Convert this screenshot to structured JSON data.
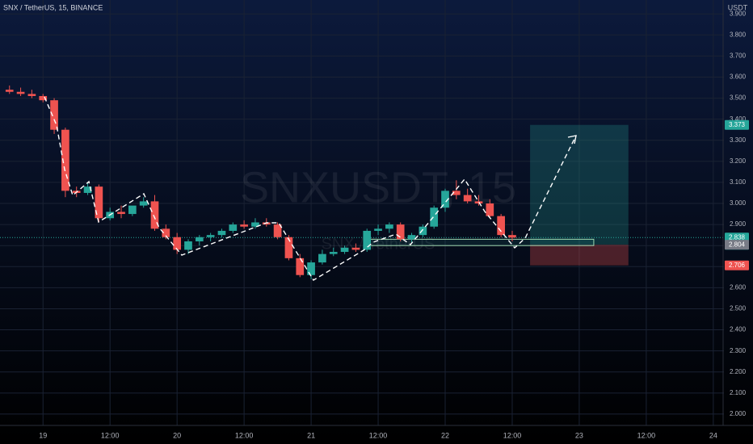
{
  "chart_data": {
    "type": "candlestick",
    "title": "SNX / TetherUS, 15, BINANCE",
    "currency": "USDT",
    "watermark": "SNXUSDT, 15",
    "watermark_sub": "SNX / TetherUS",
    "up_color": "#26a69a",
    "down_color": "#ef5350",
    "x": [
      -6,
      -4,
      -2,
      0,
      2,
      4,
      6,
      8,
      10,
      12,
      14,
      16,
      18,
      20,
      22,
      24,
      26,
      28,
      30,
      32,
      34,
      36,
      38,
      40,
      42,
      44,
      46,
      48,
      50,
      52,
      54,
      56,
      58,
      60,
      62,
      64,
      66,
      68,
      70,
      72,
      74,
      76,
      78,
      80,
      82,
      84
    ],
    "open": [
      3.54,
      3.53,
      3.52,
      3.51,
      3.49,
      3.35,
      3.06,
      3.05,
      3.08,
      2.93,
      2.96,
      2.95,
      2.99,
      3.01,
      2.88,
      2.84,
      2.78,
      2.82,
      2.84,
      2.85,
      2.87,
      2.9,
      2.89,
      2.91,
      2.9,
      2.84,
      2.74,
      2.66,
      2.72,
      2.76,
      2.77,
      2.79,
      2.78,
      2.87,
      2.88,
      2.9,
      2.83,
      2.85,
      2.89,
      2.98,
      3.06,
      3.04,
      3.01,
      3.0,
      2.94,
      2.85
    ],
    "high": [
      3.56,
      3.55,
      3.54,
      3.52,
      3.5,
      3.36,
      3.08,
      3.1,
      3.09,
      2.98,
      2.99,
      2.98,
      3.03,
      3.04,
      2.9,
      2.86,
      2.83,
      2.85,
      2.86,
      2.88,
      2.91,
      2.92,
      2.93,
      2.93,
      2.91,
      2.85,
      2.76,
      2.73,
      2.78,
      2.79,
      2.8,
      2.81,
      2.88,
      2.9,
      2.91,
      2.91,
      2.86,
      2.9,
      2.99,
      3.07,
      3.11,
      3.07,
      3.04,
      3.02,
      2.95,
      2.87
    ],
    "low": [
      3.52,
      3.51,
      3.5,
      3.48,
      3.33,
      3.03,
      3.03,
      3.04,
      2.91,
      2.92,
      2.93,
      2.94,
      2.98,
      2.87,
      2.83,
      2.76,
      2.76,
      2.8,
      2.82,
      2.84,
      2.86,
      2.88,
      2.88,
      2.89,
      2.83,
      2.73,
      2.65,
      2.64,
      2.71,
      2.75,
      2.76,
      2.77,
      2.77,
      2.85,
      2.86,
      2.82,
      2.81,
      2.84,
      2.88,
      2.96,
      3.02,
      3.0,
      2.99,
      2.93,
      2.84,
      2.82
    ],
    "close": [
      3.53,
      3.52,
      3.51,
      3.49,
      3.35,
      3.06,
      3.05,
      3.08,
      2.93,
      2.96,
      2.95,
      2.99,
      3.01,
      2.88,
      2.84,
      2.78,
      2.82,
      2.84,
      2.85,
      2.87,
      2.9,
      2.89,
      2.91,
      2.9,
      2.84,
      2.74,
      2.66,
      2.72,
      2.76,
      2.77,
      2.79,
      2.78,
      2.87,
      2.88,
      2.9,
      2.83,
      2.85,
      2.89,
      2.98,
      3.06,
      3.04,
      3.01,
      3.0,
      2.94,
      2.85,
      2.838
    ],
    "xlim": [
      -7.7,
      121.9
    ],
    "xticks": [
      {
        "value": 0,
        "label": "19"
      },
      {
        "value": 12,
        "label": "12:00"
      },
      {
        "value": 24,
        "label": "20"
      },
      {
        "value": 36,
        "label": "12:00"
      },
      {
        "value": 48,
        "label": "21"
      },
      {
        "value": 60,
        "label": "12:00"
      },
      {
        "value": 72,
        "label": "22"
      },
      {
        "value": 84,
        "label": "12:00"
      },
      {
        "value": 96,
        "label": "23"
      },
      {
        "value": 108,
        "label": "12:00"
      },
      {
        "value": 120,
        "label": "24"
      }
    ],
    "ylim": [
      1.946,
      3.966
    ],
    "yticks": [
      {
        "value": 2.0,
        "label": "2.000"
      },
      {
        "value": 2.1,
        "label": "2.100"
      },
      {
        "value": 2.2,
        "label": "2.200"
      },
      {
        "value": 2.3,
        "label": "2.300"
      },
      {
        "value": 2.4,
        "label": "2.400"
      },
      {
        "value": 2.5,
        "label": "2.500"
      },
      {
        "value": 2.6,
        "label": "2.600"
      },
      {
        "value": 2.7,
        "label": "2.700"
      },
      {
        "value": 2.8,
        "label": "2.800"
      },
      {
        "value": 2.9,
        "label": "2.900"
      },
      {
        "value": 3.0,
        "label": "3.000"
      },
      {
        "value": 3.1,
        "label": "3.100"
      },
      {
        "value": 3.2,
        "label": "3.200"
      },
      {
        "value": 3.3,
        "label": "3.300"
      },
      {
        "value": 3.4,
        "label": "3.400"
      },
      {
        "value": 3.5,
        "label": "3.500"
      },
      {
        "value": 3.6,
        "label": "3.600"
      },
      {
        "value": 3.7,
        "label": "3.700"
      },
      {
        "value": 3.8,
        "label": "3.800"
      },
      {
        "value": 3.9,
        "label": "3.900"
      }
    ],
    "grid": true,
    "last_price": 2.838,
    "countdown": "03:02",
    "position": {
      "target": 3.373,
      "entry": 2.804,
      "stop": 2.706,
      "x_start": 87.2,
      "x_end": 104.8
    },
    "zone": {
      "low": 2.8,
      "high": 2.83,
      "x_start": 58.1,
      "x_end": 98.6
    }
  }
}
